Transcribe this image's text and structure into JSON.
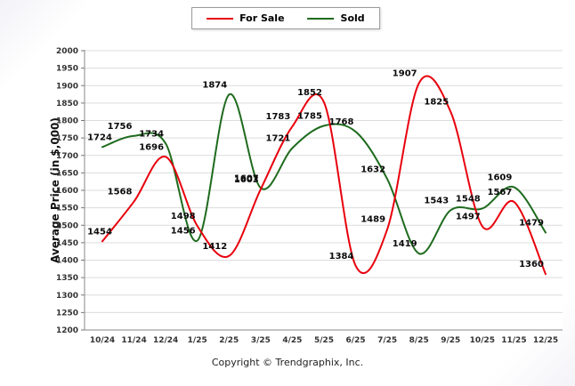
{
  "legend": {
    "items": [
      {
        "label": "Sold",
        "color": "#e8000d"
      },
      {
        "label": "For Sale",
        "color": "#1e6b1e"
      }
    ]
  },
  "y_axis_title": "Average Price (in $,000)",
  "footer": {
    "copyright": "Copyright © Trendgraphix, Inc."
  },
  "chart_data": {
    "type": "line",
    "title": "",
    "xlabel": "",
    "ylabel": "Average Price (in $,000)",
    "ylim": [
      1200,
      2000
    ],
    "ytick_step": 50,
    "grid": "horizontal",
    "legend_position": "top-center",
    "line_style": "smooth",
    "categories": [
      "10/24",
      "11/24",
      "12/24",
      "1/25",
      "2/25",
      "3/25",
      "4/25",
      "5/25",
      "6/25",
      "7/25",
      "8/25",
      "9/25",
      "10/25",
      "11/25",
      "12/25"
    ],
    "series": [
      {
        "name": "For Sale",
        "color": "#1e6b1e",
        "values": [
          1724,
          1756,
          1734,
          1456,
          1874,
          1607,
          1721,
          1785,
          1768,
          1632,
          1419,
          1543,
          1548,
          1609,
          1479
        ]
      },
      {
        "name": "Sold",
        "color": "#e8000d",
        "values": [
          1454,
          1568,
          1696,
          1498,
          1412,
          1603,
          1783,
          1852,
          1384,
          1489,
          1907,
          1825,
          1497,
          1567,
          1360
        ]
      }
    ]
  }
}
